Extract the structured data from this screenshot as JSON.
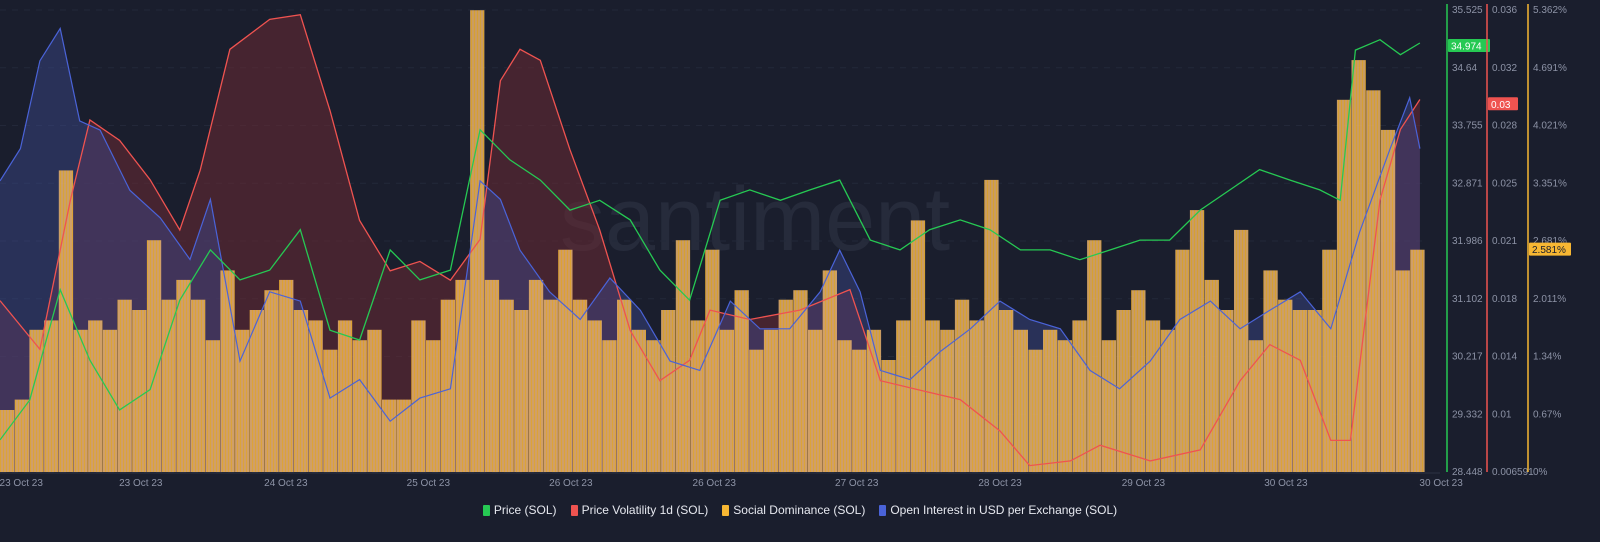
{
  "watermark": "santiment",
  "chart_data": {
    "type": "line",
    "x_unit": "hours since start",
    "xlim": [
      0,
      168
    ],
    "x_ticks": [
      {
        "t": 2.5,
        "label": "23 Oct 23"
      },
      {
        "t": 16.6,
        "label": "23 Oct 23"
      },
      {
        "t": 33.7,
        "label": "24 Oct 23"
      },
      {
        "t": 50.5,
        "label": "25 Oct 23"
      },
      {
        "t": 67.3,
        "label": "26 Oct 23"
      },
      {
        "t": 84.2,
        "label": "26 Oct 23"
      },
      {
        "t": 101.0,
        "label": "27 Oct 23"
      },
      {
        "t": 117.9,
        "label": "28 Oct 23"
      },
      {
        "t": 134.8,
        "label": "29 Oct 23"
      },
      {
        "t": 151.6,
        "label": "30 Oct 23"
      },
      {
        "t": 169.9,
        "label": "30 Oct 23"
      }
    ],
    "axes": {
      "price": {
        "ylim": [
          28.448,
          35.525
        ],
        "ticks": [
          "35.525",
          "34.64",
          "33.755",
          "32.871",
          "31.986",
          "31.102",
          "30.217",
          "29.332",
          "28.448"
        ],
        "color": "#26c953",
        "current": "34.974"
      },
      "volatility": {
        "ylim": [
          0.006591,
          0.036
        ],
        "ticks": [
          "0.036",
          "0.032",
          "0.028",
          "0.025",
          "0.021",
          "0.018",
          "0.014",
          "0.01",
          "0.006591"
        ],
        "color": "#ef5350",
        "current": "0.03"
      },
      "social": {
        "ylim": [
          0,
          5.362
        ],
        "ticks": [
          "5.362%",
          "4.691%",
          "4.021%",
          "3.351%",
          "2.681%",
          "2.011%",
          "1.34%",
          "0.67%",
          "0%"
        ],
        "color": "#f7b733",
        "current": "2.581%"
      }
    },
    "series": [
      {
        "name": "Price (SOL)",
        "axis": "price",
        "color": "#26c953",
        "kind": "line",
        "x": [
          0,
          3.5,
          7.1,
          10.6,
          14.1,
          17.7,
          21.2,
          24.8,
          28.3,
          31.8,
          35.4,
          38.9,
          42.4,
          46.0,
          49.5,
          53.1,
          56.6,
          60.1,
          63.7,
          67.2,
          70.7,
          74.3,
          77.8,
          81.3,
          84.9,
          88.4,
          92.0,
          95.5,
          99.0,
          102.6,
          106.1,
          109.6,
          113.2,
          116.7,
          120.3,
          123.8,
          127.3,
          130.9,
          134.4,
          137.9,
          141.5,
          145.0,
          148.5,
          152.1,
          155.6,
          158.0,
          159.8,
          162.7,
          165.1,
          167.4
        ],
        "values": [
          28.94,
          29.55,
          31.24,
          30.16,
          29.4,
          29.71,
          31.08,
          31.85,
          31.39,
          31.54,
          32.16,
          30.62,
          30.47,
          31.85,
          31.39,
          31.54,
          33.69,
          33.23,
          32.92,
          32.46,
          32.61,
          32.31,
          31.54,
          31.08,
          32.61,
          32.77,
          32.61,
          32.77,
          32.92,
          32.0,
          31.85,
          32.16,
          32.31,
          32.16,
          31.85,
          31.85,
          31.7,
          31.85,
          32.0,
          32.0,
          32.46,
          32.77,
          33.08,
          32.92,
          32.77,
          32.61,
          34.91,
          35.07,
          34.84,
          35.02
        ]
      },
      {
        "name": "Price Volatility 1d (SOL)",
        "axis": "volatility",
        "color": "#ef5350",
        "kind": "area",
        "x": [
          0,
          4.7,
          8.3,
          10.6,
          14.1,
          17.7,
          21.2,
          23.6,
          27.1,
          31.8,
          35.4,
          38.9,
          42.4,
          46.0,
          49.5,
          53.1,
          56.6,
          59.0,
          61.3,
          63.7,
          67.2,
          70.7,
          74.3,
          77.8,
          81.3,
          83.7,
          88.4,
          94.3,
          100.2,
          103.8,
          108.5,
          113.2,
          117.9,
          121.4,
          126.2,
          129.7,
          135.6,
          141.5,
          146.2,
          149.7,
          153.3,
          156.9,
          159.2,
          162.7,
          165.1,
          167.4
        ],
        "values": [
          0.0175,
          0.0144,
          0.0239,
          0.029,
          0.0277,
          0.0252,
          0.022,
          0.0258,
          0.0335,
          0.0354,
          0.0357,
          0.0296,
          0.0226,
          0.0194,
          0.02,
          0.0188,
          0.0214,
          0.0315,
          0.0335,
          0.0328,
          0.0271,
          0.022,
          0.0156,
          0.0124,
          0.0137,
          0.0169,
          0.0163,
          0.0169,
          0.0182,
          0.0124,
          0.0118,
          0.0112,
          0.0092,
          0.007,
          0.0073,
          0.0083,
          0.0073,
          0.008,
          0.0124,
          0.0147,
          0.0137,
          0.0086,
          0.0086,
          0.0239,
          0.0284,
          0.0303
        ]
      },
      {
        "name": "Social Dominance (SOL)",
        "axis": "social",
        "color": "#f7b733",
        "kind": "bar",
        "values": [
          0.72,
          0.84,
          1.65,
          1.76,
          3.5,
          1.65,
          1.76,
          1.65,
          2.0,
          1.88,
          2.69,
          2.0,
          2.23,
          2.0,
          1.53,
          2.34,
          1.65,
          1.88,
          2.11,
          2.23,
          1.88,
          1.76,
          1.42,
          1.76,
          1.53,
          1.65,
          0.84,
          0.84,
          1.76,
          1.53,
          2.0,
          2.23,
          5.36,
          2.23,
          2.0,
          1.88,
          2.23,
          2.0,
          2.58,
          2.0,
          1.76,
          1.53,
          2.0,
          1.65,
          1.53,
          1.88,
          2.69,
          1.76,
          2.58,
          1.65,
          2.11,
          1.42,
          1.65,
          2.0,
          2.11,
          1.65,
          2.34,
          1.53,
          1.42,
          1.65,
          1.3,
          1.76,
          2.92,
          1.76,
          1.65,
          2.0,
          1.76,
          3.39,
          1.88,
          1.65,
          1.42,
          1.65,
          1.53,
          1.76,
          2.69,
          1.53,
          1.88,
          2.11,
          1.76,
          1.65,
          2.58,
          3.04,
          2.23,
          1.88,
          2.81,
          1.53,
          2.34,
          2.0,
          1.88,
          1.88,
          2.58,
          4.32,
          4.78,
          4.43,
          3.97,
          2.34,
          2.58
        ]
      },
      {
        "name": "Open Interest in USD per Exchange (SOL)",
        "axis": "relative",
        "color": "#4a63d8",
        "kind": "area",
        "x": [
          0,
          2.4,
          4.7,
          7.1,
          9.4,
          11.8,
          15.3,
          18.9,
          22.4,
          24.8,
          28.3,
          31.8,
          35.4,
          38.9,
          42.4,
          46.0,
          49.5,
          53.1,
          56.6,
          59.0,
          61.3,
          64.8,
          68.4,
          71.9,
          75.5,
          79.0,
          82.5,
          86.1,
          89.6,
          93.1,
          96.7,
          99.0,
          101.4,
          103.8,
          107.3,
          110.8,
          114.4,
          117.9,
          121.4,
          125.0,
          128.5,
          132.0,
          135.6,
          139.1,
          142.7,
          146.2,
          149.7,
          153.3,
          156.9,
          160.3,
          163.9,
          166.2,
          167.4
        ],
        "values": [
          0.63,
          0.7,
          0.89,
          0.96,
          0.76,
          0.74,
          0.61,
          0.55,
          0.46,
          0.59,
          0.24,
          0.39,
          0.37,
          0.16,
          0.2,
          0.11,
          0.16,
          0.18,
          0.63,
          0.59,
          0.48,
          0.39,
          0.33,
          0.42,
          0.35,
          0.24,
          0.22,
          0.37,
          0.31,
          0.31,
          0.39,
          0.48,
          0.39,
          0.22,
          0.2,
          0.26,
          0.31,
          0.37,
          0.33,
          0.31,
          0.22,
          0.18,
          0.24,
          0.33,
          0.37,
          0.31,
          0.35,
          0.39,
          0.31,
          0.52,
          0.7,
          0.81,
          0.7
        ]
      }
    ],
    "legend": {
      "placement": "bottom-center"
    }
  }
}
